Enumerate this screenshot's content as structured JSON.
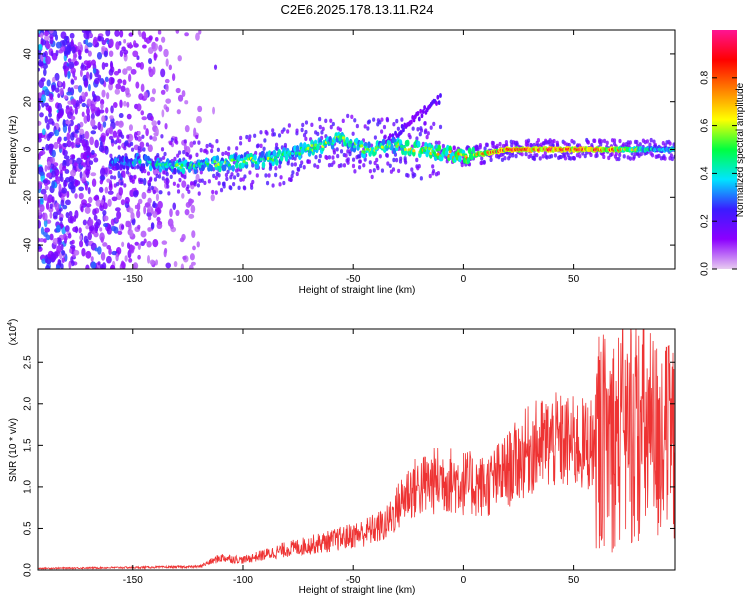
{
  "title": "C2E6.2025.178.13.11.R24",
  "chart_data": [
    {
      "type": "heatmap",
      "xlabel": "Height of straight line (km)",
      "ylabel": "Frequency (Hz)",
      "xlim": [
        -193,
        96
      ],
      "ylim": [
        -50,
        50
      ],
      "xticks": [
        -150,
        -100,
        -50,
        0,
        50
      ],
      "yticks": [
        -40,
        -20,
        0,
        20,
        40
      ],
      "colorbar": {
        "label": "Normalized spectral amplitude",
        "range": [
          0,
          1
        ],
        "ticks": [
          "0.0",
          "0.2",
          "0.4",
          "0.6",
          "0.8"
        ],
        "colors": [
          "#e8ccf0",
          "#8c00ff",
          "#3a1cff",
          "#00e5ff",
          "#00ff40",
          "#ffff00",
          "#ff8000",
          "#ff0000",
          "#ff1493"
        ]
      },
      "ridge": [
        {
          "x": -150,
          "freq": -5,
          "amp": 0.35
        },
        {
          "x": -130,
          "freq": -7,
          "amp": 0.45
        },
        {
          "x": -110,
          "freq": -6,
          "amp": 0.5
        },
        {
          "x": -90,
          "freq": -4,
          "amp": 0.5
        },
        {
          "x": -70,
          "freq": 0,
          "amp": 0.5
        },
        {
          "x": -55,
          "freq": 5,
          "amp": 0.55
        },
        {
          "x": -45,
          "freq": 0,
          "amp": 0.5
        },
        {
          "x": -30,
          "freq": 2,
          "amp": 0.55
        },
        {
          "x": -20,
          "freq": 0,
          "amp": 0.6
        },
        {
          "x": 0,
          "freq": -3,
          "amp": 0.65
        },
        {
          "x": 20,
          "freq": 0,
          "amp": 0.9
        },
        {
          "x": 60,
          "freq": 0,
          "amp": 0.9
        },
        {
          "x": 90,
          "freq": 0,
          "amp": 0.4
        }
      ]
    },
    {
      "type": "line",
      "xlabel": "Height of straight line (km)",
      "ylabel": "SNR (10 * v/v)",
      "yscale_label": "(x10",
      "yscale_exp": "4",
      "xlim": [
        -193,
        96
      ],
      "ylim": [
        0,
        2.9
      ],
      "xticks": [
        -150,
        -100,
        -50,
        0,
        50
      ],
      "yticks": [
        "0.0",
        "0.5",
        "1.0",
        "1.5",
        "2.0",
        "2.5"
      ],
      "color": "#ee3333",
      "envelope": [
        {
          "x": -193,
          "y": 0.02
        },
        {
          "x": -150,
          "y": 0.03
        },
        {
          "x": -120,
          "y": 0.04
        },
        {
          "x": -110,
          "y": 0.15
        },
        {
          "x": -100,
          "y": 0.12
        },
        {
          "x": -80,
          "y": 0.25
        },
        {
          "x": -60,
          "y": 0.35
        },
        {
          "x": -45,
          "y": 0.45
        },
        {
          "x": -35,
          "y": 0.55
        },
        {
          "x": -25,
          "y": 0.95
        },
        {
          "x": -10,
          "y": 1.1
        },
        {
          "x": 0,
          "y": 1.05
        },
        {
          "x": 10,
          "y": 1.0
        },
        {
          "x": 20,
          "y": 1.2
        },
        {
          "x": 30,
          "y": 1.45
        },
        {
          "x": 40,
          "y": 1.55
        },
        {
          "x": 55,
          "y": 1.5
        },
        {
          "x": 70,
          "y": 1.6
        },
        {
          "x": 80,
          "y": 1.7
        },
        {
          "x": 90,
          "y": 1.5
        },
        {
          "x": 96,
          "y": 1.5
        }
      ]
    }
  ]
}
